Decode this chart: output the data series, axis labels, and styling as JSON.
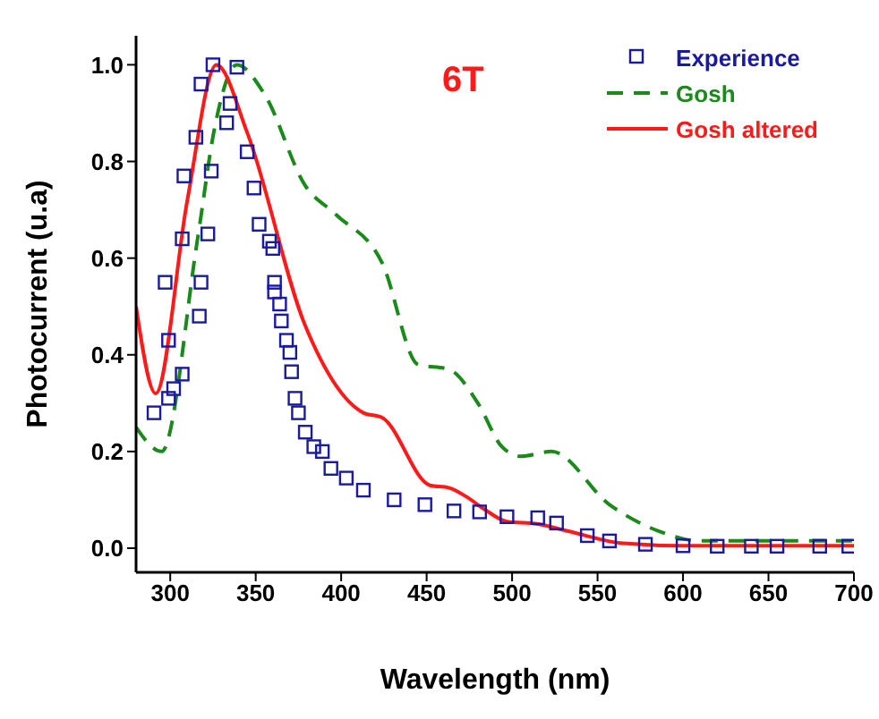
{
  "chart_data": {
    "type": "line",
    "xlabel": "Wavelength (nm)",
    "ylabel": "Photocurrent (u.a)",
    "annotations": [
      "6T"
    ],
    "xlim": [
      280,
      700
    ],
    "xticks": [
      300,
      350,
      400,
      450,
      500,
      550,
      600,
      650,
      700
    ],
    "ylim": [
      -0.05,
      1.06
    ],
    "yticks": [
      {
        "value": 0,
        "label": "0.0"
      },
      {
        "value": 0.2,
        "label": "0.2"
      },
      {
        "value": 0.4,
        "label": "0.4"
      },
      {
        "value": 0.6,
        "label": "0.6"
      },
      {
        "value": 0.8,
        "label": "0.8"
      },
      {
        "value": 1,
        "label": "1.0"
      }
    ],
    "grid": false,
    "legend": "top right",
    "series": [
      {
        "name": "Experience",
        "type": "scatter",
        "marker": "square",
        "color": "#1a1aa0",
        "x": [
          290.5,
          299,
          302,
          307,
          299,
          297,
          318,
          317,
          307,
          322,
          308,
          324,
          315,
          318,
          325,
          339,
          335,
          333,
          345,
          349,
          352,
          358,
          360,
          361,
          361,
          364,
          365,
          368,
          370,
          371,
          373,
          375,
          379,
          384,
          389,
          394,
          403,
          413,
          431,
          449,
          466,
          481,
          497,
          515,
          526,
          544,
          557,
          578,
          600,
          620,
          640,
          655,
          680,
          697
        ],
        "values": [
          0.28,
          0.31,
          0.33,
          0.36,
          0.43,
          0.55,
          0.55,
          0.48,
          0.64,
          0.65,
          0.77,
          0.78,
          0.85,
          0.96,
          1.0,
          0.995,
          0.92,
          0.88,
          0.82,
          0.745,
          0.67,
          0.635,
          0.62,
          0.55,
          0.53,
          0.505,
          0.47,
          0.43,
          0.405,
          0.365,
          0.31,
          0.28,
          0.24,
          0.21,
          0.2,
          0.165,
          0.145,
          0.12,
          0.1,
          0.09,
          0.077,
          0.075,
          0.065,
          0.063,
          0.052,
          0.026,
          0.015,
          0.008,
          0.005,
          0.004,
          0.004,
          0.004,
          0.004,
          0.004
        ]
      },
      {
        "name": "Gosh",
        "line_style": "dashed",
        "marker": "none",
        "color": "#1a8a1a",
        "x": [
          280,
          295,
          316,
          326,
          339,
          355,
          379,
          397,
          424,
          445,
          463,
          480,
          494,
          505,
          523,
          557,
          586,
          610,
          650,
          700
        ],
        "values": [
          0.25,
          0.2,
          0.64,
          0.87,
          1.0,
          0.94,
          0.75,
          0.69,
          0.59,
          0.38,
          0.37,
          0.3,
          0.21,
          0.19,
          0.2,
          0.09,
          0.035,
          0.015,
          0.015,
          0.015
        ]
      },
      {
        "name": "Gosh altered",
        "line_style": "solid",
        "marker": "none",
        "color": "#ff1a1a",
        "x": [
          280,
          291.5,
          310,
          327,
          345,
          379,
          413,
          424,
          452,
          463,
          473,
          484,
          497,
          515,
          533,
          565,
          600,
          650,
          700
        ],
        "values": [
          0.5,
          0.32,
          0.72,
          1.0,
          0.86,
          0.46,
          0.28,
          0.27,
          0.13,
          0.125,
          0.107,
          0.08,
          0.055,
          0.05,
          0.035,
          0.01,
          0.005,
          0.005,
          0.005
        ]
      }
    ]
  }
}
